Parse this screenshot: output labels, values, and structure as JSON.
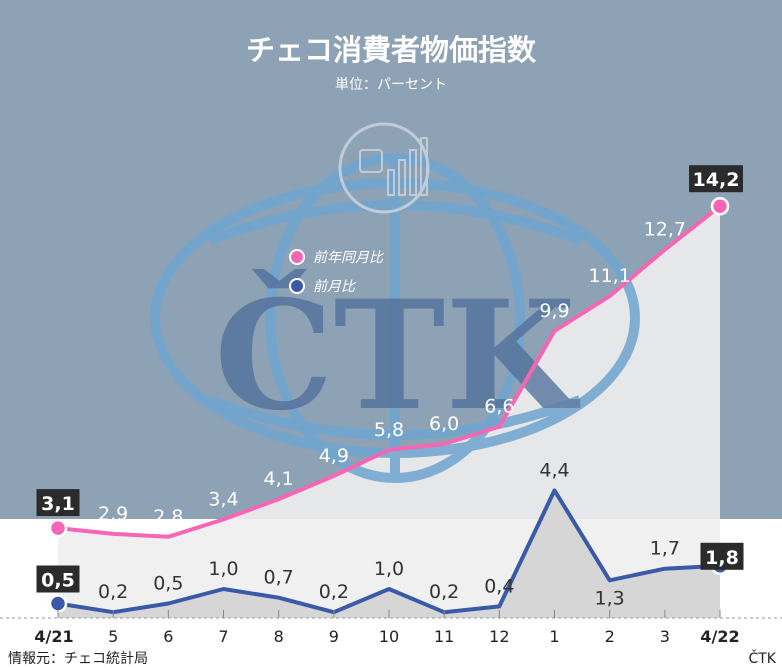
{
  "chart_data": {
    "type": "line",
    "title": "チェコ消費者物価指数",
    "subtitle": "単位：パーセント",
    "categories": [
      "4/21",
      "5",
      "6",
      "7",
      "8",
      "9",
      "10",
      "11",
      "12",
      "1",
      "2",
      "3",
      "4/22"
    ],
    "series": [
      {
        "name": "前年同月比",
        "color": "#f766b4",
        "values": [
          3.1,
          2.9,
          2.8,
          3.4,
          4.1,
          4.9,
          5.8,
          6.0,
          6.6,
          9.9,
          11.1,
          12.7,
          14.2
        ],
        "labels": [
          "3,1",
          "2,9",
          "2,8",
          "3,4",
          "4,1",
          "4,9",
          "5,8",
          "6,0",
          "6,6",
          "9,9",
          "11,1",
          "12,7",
          "14,2"
        ]
      },
      {
        "name": "前月比",
        "color": "#3a5aa8",
        "values": [
          0.5,
          0.2,
          0.5,
          1.0,
          0.7,
          0.2,
          1.0,
          0.2,
          0.4,
          4.4,
          1.3,
          1.7,
          1.8
        ],
        "labels": [
          "0,5",
          "0,2",
          "0,5",
          "1,0",
          "0,7",
          "0,2",
          "1,0",
          "0,2",
          "0,4",
          "4,4",
          "1,3",
          "1,7",
          "1,8"
        ]
      }
    ],
    "ylim": [
      0,
      15
    ],
    "grid": false,
    "legend_position": "top-center",
    "xtick_bold": [
      "4/21",
      "4/22"
    ]
  },
  "source": "情報元：チェコ統計局",
  "brand": "ČTK",
  "watermark_text": "ČTK",
  "colors": {
    "header_bg": "#8ea2b6",
    "watermark": "#4f6f9b",
    "watermark_ring": "#6fa5cf"
  }
}
